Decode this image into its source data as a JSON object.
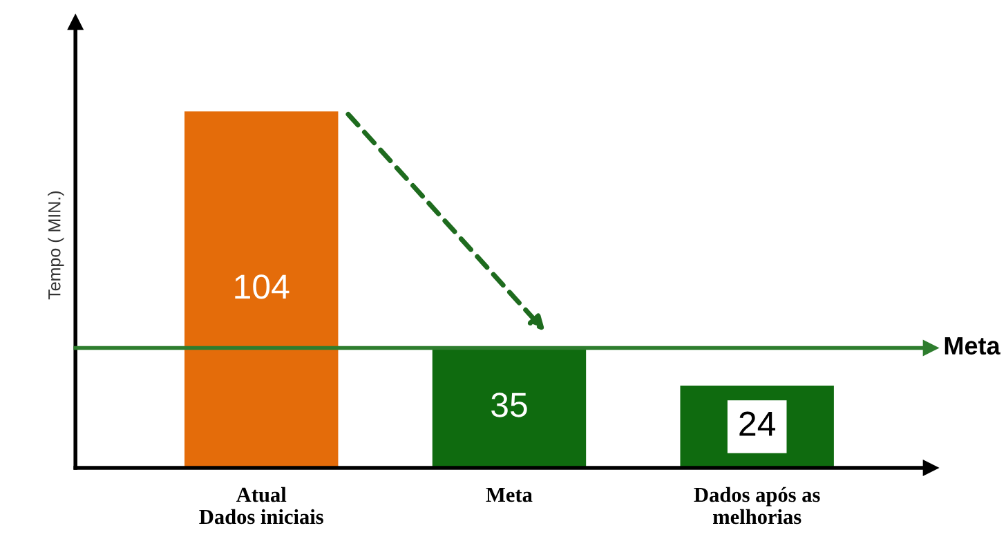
{
  "chart_data": {
    "type": "bar",
    "ylabel": "Tempo ( MIN.)",
    "categories": [
      "Atual\nDados iniciais",
      "Meta",
      "Dados após as\nmelhorias"
    ],
    "values": [
      104,
      35,
      24
    ],
    "colors": [
      "#e46c0a",
      "#0f6b0f",
      "#0f6b0f"
    ],
    "ylim": [
      0,
      130
    ],
    "tick_labels": "x",
    "data_labels": true,
    "ref_lines": [
      {
        "axis": "y",
        "value": 35,
        "label": "Meta",
        "color": "#2e7d2e"
      }
    ]
  }
}
